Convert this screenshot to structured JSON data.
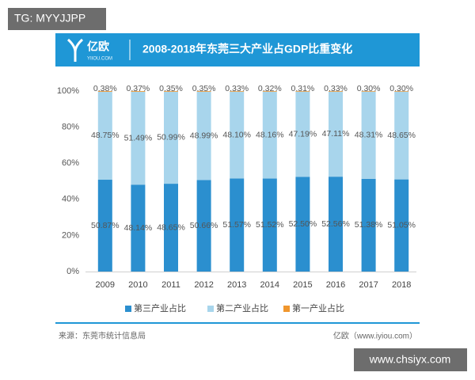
{
  "watermark_top": "TG: MYYJJPP",
  "watermark_bottom": "www.chsiyx.com",
  "header": {
    "logo": "亿欧",
    "logo_sub": "YIIOU.COM"
  },
  "chart_data": {
    "type": "stacked_bar",
    "title": "2008-2018年东莞三大产业占GDP比重变化",
    "categories": [
      "2009",
      "2010",
      "2011",
      "2012",
      "2013",
      "2014",
      "2015",
      "2016",
      "2017",
      "2018"
    ],
    "series": [
      {
        "name": "第三产业占比",
        "color": "#2b8fcf",
        "values": [
          50.87,
          48.14,
          48.65,
          50.66,
          51.57,
          51.52,
          52.5,
          52.56,
          51.38,
          51.05
        ],
        "value_labels": [
          "50.87%",
          "48.14%",
          "48.65%",
          "50.66%",
          "51.57%",
          "51.52%",
          "52.50%",
          "52.56%",
          "51.38%",
          "51.05%"
        ]
      },
      {
        "name": "第二产业占比",
        "color": "#a8d5ec",
        "values": [
          48.75,
          51.49,
          50.99,
          48.99,
          48.1,
          48.16,
          47.19,
          47.11,
          48.31,
          48.65
        ],
        "value_labels": [
          "48.75%",
          "51.49%",
          "50.99%",
          "48.99%",
          "48.10%",
          "48.16%",
          "47.19%",
          "47.11%",
          "48.31%",
          "48.65%"
        ]
      },
      {
        "name": "第一产业占比",
        "color": "#f0962d",
        "values": [
          0.38,
          0.37,
          0.35,
          0.35,
          0.33,
          0.32,
          0.31,
          0.33,
          0.3,
          0.3
        ],
        "value_labels": [
          "0.38%",
          "0.37%",
          "0.35%",
          "0.35%",
          "0.33%",
          "0.32%",
          "0.31%",
          "0.33%",
          "0.30%",
          "0.30%"
        ]
      }
    ],
    "ylim": [
      0,
      100
    ],
    "yticks": [
      {
        "value": 0,
        "label": "0%"
      },
      {
        "value": 20,
        "label": "20%"
      },
      {
        "value": 40,
        "label": "40%"
      },
      {
        "value": 60,
        "label": "60%"
      },
      {
        "value": 80,
        "label": "80%"
      },
      {
        "value": 100,
        "label": "100%"
      }
    ],
    "legend": "bottom"
  },
  "footer": {
    "source": "来源：东莞市统计信息局",
    "credit": "亿欧（www.iyiou.com）"
  }
}
